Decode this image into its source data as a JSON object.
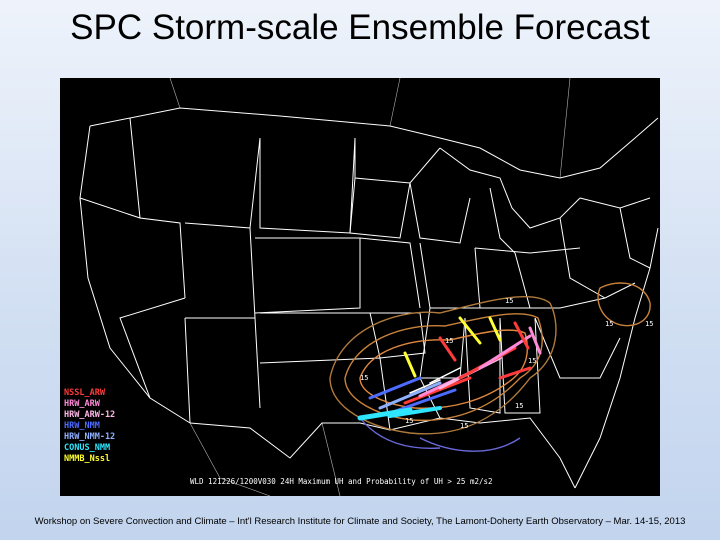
{
  "slide": {
    "title": "SPC Storm-scale Ensemble Forecast",
    "footer": "Workshop on Severe Convection and Climate – Int'l Research Institute for Climate and Society, The Lamont-Doherty Earth Observatory – Mar. 14-15, 2013"
  },
  "map": {
    "caption": "WLD 121226/1200V030  24H Maximum UH and Probability of UH > 25 m2/s2",
    "legend": [
      {
        "label": "NSSL_ARW",
        "color": "#ff3b3b"
      },
      {
        "label": "HRW_ARW",
        "color": "#ff8ad8"
      },
      {
        "label": "HRW_ARW-12",
        "color": "#ffb6e6"
      },
      {
        "label": "HRW_NMM",
        "color": "#4d6bff"
      },
      {
        "label": "HRW_NMM-12",
        "color": "#8fb0ff"
      },
      {
        "label": "CONUS_NMM",
        "color": "#2ee6ff"
      },
      {
        "label": "NMMB_Nssl",
        "color": "#ffff33"
      }
    ],
    "contour_labels": [
      "15",
      "15",
      "15",
      "15",
      "15",
      "15",
      "15",
      "15",
      "15"
    ]
  }
}
